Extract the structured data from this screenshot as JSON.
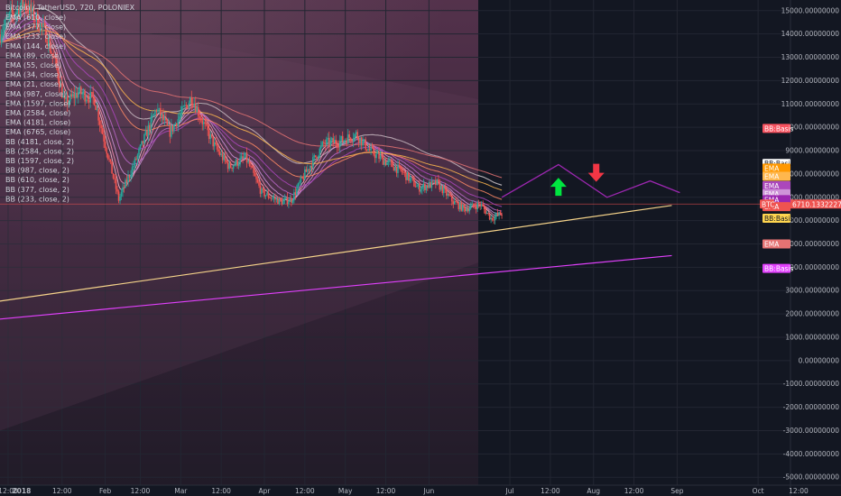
{
  "header": {
    "symbol_line": "Bitcoin / TetherUSD, 720, POLONIEX"
  },
  "legend": [
    "EMA (610, close)",
    "EMA (377, close)",
    "EMA (233, close)",
    "EMA (144, close)",
    "EMA (89, close)",
    "EMA (55, close)",
    "EMA (34, close)",
    "EMA (21, close)",
    "EMA (987, close)",
    "EMA (1597, close)",
    "EMA (2584, close)",
    "EMA (4181, close)",
    "EMA (6765, close)",
    "BB (4181, close, 2)",
    "BB (2584, close, 2)",
    "BB (1597, close, 2)",
    "BB (987, close, 2)",
    "BB (610, close, 2)",
    "BB (377, close, 2)",
    "BB (233, close, 2)"
  ],
  "colors": {
    "background": "#131722",
    "grid": "#232632",
    "up_candle": "#26a69a",
    "down_candle": "#ef5350",
    "projection": "#9c27b0",
    "up_arrow": "#00e640",
    "down_arrow": "#f23645"
  },
  "chart_data": {
    "type": "candlestick",
    "title": "Bitcoin / TetherUSD, 720, POLONIEX",
    "ylim": [
      -5300,
      15300
    ],
    "y_ticks": [
      15000,
      14000,
      13000,
      12000,
      11000,
      10000,
      9000,
      8000,
      7000,
      6000,
      5000,
      4000,
      3000,
      2000,
      1000,
      0,
      -1000,
      -2000,
      -3000,
      -4000,
      -5000
    ],
    "y_tick_labels": [
      "15000.00000000",
      "14000.00000000",
      "13000.00000000",
      "12000.00000000",
      "11000.00000000",
      "10000.00000000",
      "9000.00000000",
      "8000.00000000",
      "7000.00000000",
      "6000.00000000",
      "5000.00000000",
      "4000.00000000",
      "3000.00000000",
      "2000.00000000",
      "1000.00000000",
      "0.00000000",
      "-1000.00000000",
      "-2000.00000000",
      "-3000.00000000",
      "-4000.00000000",
      "-5000.00000000"
    ],
    "xlim": [
      "2017-12-24",
      "2018-10-13"
    ],
    "x_ticks": [
      {
        "date": "2017-12-27",
        "label": "12:00"
      },
      {
        "date": "2018-01-01",
        "label": "2018"
      },
      {
        "date": "2018-01-16",
        "label": "12:00"
      },
      {
        "date": "2018-02-01",
        "label": "Feb"
      },
      {
        "date": "2018-02-14",
        "label": "12:00"
      },
      {
        "date": "2018-03-01",
        "label": "Mar"
      },
      {
        "date": "2018-03-16",
        "label": "12:00"
      },
      {
        "date": "2018-04-01",
        "label": "Apr"
      },
      {
        "date": "2018-04-16",
        "label": "12:00"
      },
      {
        "date": "2018-05-01",
        "label": "May"
      },
      {
        "date": "2018-05-16",
        "label": "12:00"
      },
      {
        "date": "2018-06-01",
        "label": "Jun"
      },
      {
        "date": "2018-07-01",
        "label": "Jul"
      },
      {
        "date": "2018-07-16",
        "label": "12:00"
      },
      {
        "date": "2018-08-01",
        "label": "Aug"
      },
      {
        "date": "2018-08-16",
        "label": "12:00"
      },
      {
        "date": "2018-09-01",
        "label": "Sep"
      },
      {
        "date": "2018-10-01",
        "label": "Oct"
      },
      {
        "date": "2018-10-16",
        "label": "12:00"
      }
    ],
    "price_path": {
      "dates": [
        "2017-12-24",
        "2017-12-28",
        "2018-01-02",
        "2018-01-06",
        "2018-01-10",
        "2018-01-14",
        "2018-01-17",
        "2018-01-22",
        "2018-01-28",
        "2018-02-02",
        "2018-02-06",
        "2018-02-12",
        "2018-02-20",
        "2018-02-25",
        "2018-03-05",
        "2018-03-10",
        "2018-03-14",
        "2018-03-19",
        "2018-03-25",
        "2018-03-31",
        "2018-04-07",
        "2018-04-11",
        "2018-04-16",
        "2018-04-23",
        "2018-04-29",
        "2018-05-05",
        "2018-05-10",
        "2018-05-15",
        "2018-05-22",
        "2018-05-28",
        "2018-06-04",
        "2018-06-10",
        "2018-06-14",
        "2018-06-20",
        "2018-06-24",
        "2018-06-28"
      ],
      "values": [
        14000,
        14800,
        15300,
        14700,
        14000,
        12500,
        11000,
        11500,
        11200,
        8800,
        6900,
        8500,
        10800,
        9800,
        11300,
        10000,
        9100,
        8300,
        8700,
        7200,
        6800,
        6900,
        8000,
        9300,
        9400,
        9700,
        9000,
        8600,
        8100,
        7400,
        7600,
        6800,
        6500,
        6700,
        6100,
        6300
      ]
    },
    "ema_current_tags": [
      8100,
      7900,
      7700,
      7500,
      7300,
      7100,
      6900
    ],
    "last_price": 6710.13322274,
    "last_price_label": "6710.13322274",
    "last_price_tag": "BTC",
    "price_tags": [
      {
        "label": "BB:Basis",
        "value": 9950,
        "color": "#f7525f"
      },
      {
        "label": "BB:Basis",
        "value": 8450,
        "color": "#ffffff"
      },
      {
        "label": "EMA",
        "value": 8250,
        "color": "#ff9800"
      },
      {
        "label": "EMA",
        "value": 7900,
        "color": "#ffb74d"
      },
      {
        "label": "EMA",
        "value": 7500,
        "color": "#ab47bc"
      },
      {
        "label": "EMA",
        "value": 7150,
        "color": "#ce93d8"
      },
      {
        "label": "EMA",
        "value": 6900,
        "color": "#9c27b0"
      },
      {
        "label": "EMA",
        "value": 6600,
        "color": "#ef5350"
      },
      {
        "label": "BB:Basis",
        "value": 6100,
        "color": "#ffd54f"
      },
      {
        "label": "EMA",
        "value": 5000,
        "color": "#e57373"
      },
      {
        "label": "BB:Basis",
        "value": 3950,
        "color": "#e040fb"
      }
    ],
    "lines": [
      {
        "name": "",
        "color": "#f5d38a",
        "x": [
          "2017-12-24",
          "2018-08-30"
        ],
        "y": [
          2550,
          6650
        ]
      },
      {
        "name": "",
        "color": "#e040fb",
        "x": [
          "2017-12-24",
          "2018-08-30"
        ],
        "y": [
          1780,
          4500
        ]
      }
    ],
    "projection_path": {
      "dates": [
        "2018-06-28",
        "2018-07-19",
        "2018-08-06",
        "2018-08-22",
        "2018-09-02"
      ],
      "values": [
        7000,
        8400,
        7000,
        7700,
        7200
      ]
    },
    "arrows": [
      {
        "direction": "up",
        "date": "2018-07-19",
        "value": 7450
      },
      {
        "direction": "down",
        "date": "2018-08-02",
        "value": 8050
      }
    ]
  }
}
